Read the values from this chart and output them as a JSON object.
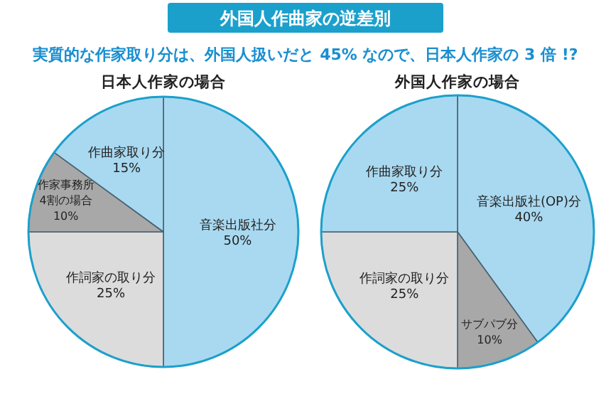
{
  "chart_data": [
    {
      "type": "other",
      "title": "外国人作曲家の逆差別",
      "subtitle": "実質的な作家取り分は、外国人扱いだと 45% なので、日本人作家の 3 倍 !?"
    },
    {
      "type": "pie",
      "title": "日本人作家の場合",
      "categories": [
        "音楽出版社分",
        "作詞家の取り分",
        "作家事務所\n4割の場合",
        "作曲家取り分"
      ],
      "values": [
        50,
        25,
        10,
        15
      ],
      "value_labels": [
        "50%",
        "25%",
        "10%",
        "15%"
      ],
      "colors": [
        "#a9d9f0",
        "#dcdcdc",
        "#a8a8a8",
        "#a9d9f0"
      ]
    },
    {
      "type": "pie",
      "title": "外国人作家の場合",
      "categories": [
        "音楽出版社(OP)分",
        "サブパブ分",
        "作詞家の取り分",
        "作曲家取り分"
      ],
      "values": [
        40,
        10,
        25,
        25
      ],
      "value_labels": [
        "40%",
        "10%",
        "25%",
        "25%"
      ],
      "colors": [
        "#a9d9f0",
        "#a8a8a8",
        "#dcdcdc",
        "#a9d9f0"
      ]
    }
  ]
}
